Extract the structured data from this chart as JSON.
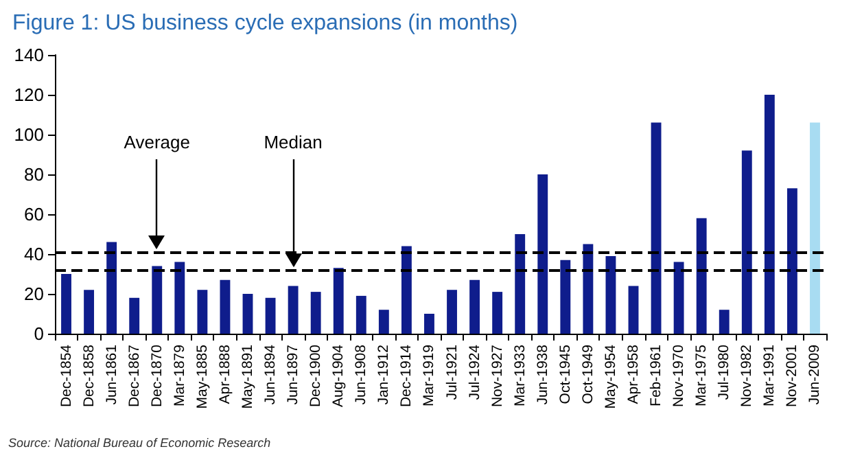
{
  "chart_data": {
    "type": "bar",
    "title": "Figure 1: US business cycle expansions (in months)",
    "categories": [
      "Dec-1854",
      "Dec-1858",
      "Jun-1861",
      "Dec-1867",
      "Dec-1870",
      "Mar-1879",
      "May-1885",
      "Apr-1888",
      "May-1891",
      "Jun-1894",
      "Jun-1897",
      "Dec-1900",
      "Aug-1904",
      "Jun-1908",
      "Jan-1912",
      "Dec-1914",
      "Mar-1919",
      "Jul-1921",
      "Jul-1924",
      "Nov-1927",
      "Mar-1933",
      "Jun-1938",
      "Oct-1945",
      "Oct-1949",
      "May-1954",
      "Apr-1958",
      "Feb-1961",
      "Nov-1970",
      "Mar-1975",
      "Jul-1980",
      "Nov-1982",
      "Mar-1991",
      "Nov-2001",
      "Jun-2009"
    ],
    "values": [
      30,
      22,
      46,
      18,
      34,
      36,
      22,
      27,
      20,
      18,
      24,
      21,
      33,
      19,
      12,
      44,
      10,
      22,
      27,
      21,
      50,
      80,
      37,
      45,
      39,
      24,
      106,
      36,
      58,
      12,
      92,
      120,
      73,
      106
    ],
    "colors": [
      "#0f1d8c",
      "#0f1d8c",
      "#0f1d8c",
      "#0f1d8c",
      "#0f1d8c",
      "#0f1d8c",
      "#0f1d8c",
      "#0f1d8c",
      "#0f1d8c",
      "#0f1d8c",
      "#0f1d8c",
      "#0f1d8c",
      "#0f1d8c",
      "#0f1d8c",
      "#0f1d8c",
      "#0f1d8c",
      "#0f1d8c",
      "#0f1d8c",
      "#0f1d8c",
      "#0f1d8c",
      "#0f1d8c",
      "#0f1d8c",
      "#0f1d8c",
      "#0f1d8c",
      "#0f1d8c",
      "#0f1d8c",
      "#0f1d8c",
      "#0f1d8c",
      "#0f1d8c",
      "#0f1d8c",
      "#0f1d8c",
      "#0f1d8c",
      "#0f1d8c",
      "#a8dcf2"
    ],
    "ylim": [
      0,
      140
    ],
    "yticks": [
      0,
      20,
      40,
      60,
      80,
      100,
      120,
      140
    ],
    "grid": false,
    "ref_lines": [
      {
        "axis": "y",
        "value": 41,
        "color": "#000000",
        "line_style": "dashed"
      },
      {
        "axis": "y",
        "value": 32,
        "color": "#000000",
        "line_style": "dashed"
      }
    ],
    "annotations": [
      {
        "text": "Average",
        "x": "Dec-1870",
        "y": 41
      },
      {
        "text": "Median",
        "x": "Jun-1897",
        "y": 32
      },
      "Source: National Bureau of Economic Research"
    ]
  }
}
